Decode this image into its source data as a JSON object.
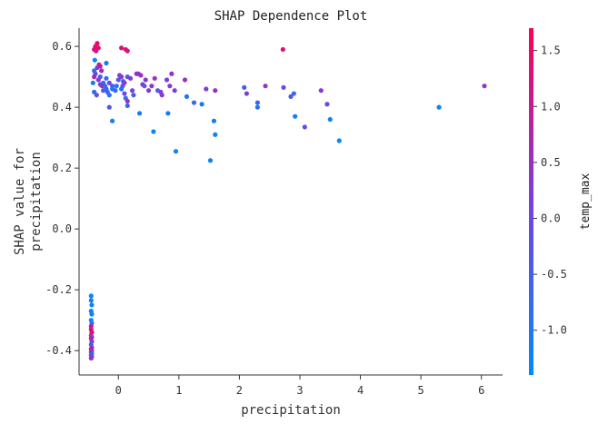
{
  "chart_data": {
    "type": "scatter",
    "title": "SHAP Dependence Plot",
    "xlabel": "precipitation",
    "ylabel_lines": [
      "SHAP value for",
      "precipitation"
    ],
    "xlim": [
      -0.65,
      6.35
    ],
    "ylim": [
      -0.48,
      0.66
    ],
    "xticks": [
      0,
      1,
      2,
      3,
      4,
      5,
      6
    ],
    "yticks": [
      -0.4,
      -0.2,
      0.0,
      0.2,
      0.4,
      0.6
    ],
    "ytick_labels": [
      "-0.4",
      "-0.2",
      "0.0",
      "0.2",
      "0.4",
      "0.6"
    ],
    "colorbar": {
      "label": "temp_max",
      "range": [
        -1.4,
        1.7
      ],
      "ticks": [
        -1.0,
        -0.5,
        0.0,
        0.5,
        1.0,
        1.5
      ],
      "tick_labels": [
        "-1.0",
        "-0.5",
        "0.0",
        "0.5",
        "1.0",
        "1.5"
      ],
      "colors": [
        "#008afb",
        "#7a3fe0",
        "#ff0052"
      ]
    },
    "points": [
      [
        -0.4,
        0.59,
        1.4
      ],
      [
        -0.38,
        0.6,
        1.3
      ],
      [
        -0.35,
        0.61,
        1.5
      ],
      [
        -0.37,
        0.585,
        1.2
      ],
      [
        -0.33,
        0.595,
        1.4
      ],
      [
        0.05,
        0.595,
        1.3
      ],
      [
        0.12,
        0.59,
        1.4
      ],
      [
        0.15,
        0.585,
        1.2
      ],
      [
        2.72,
        0.59,
        1.3
      ],
      [
        -0.4,
        0.52,
        -0.9
      ],
      [
        -0.38,
        0.51,
        -0.3
      ],
      [
        -0.35,
        0.53,
        0.2
      ],
      [
        -0.3,
        0.5,
        -0.5
      ],
      [
        -0.28,
        0.52,
        0.6
      ],
      [
        -0.25,
        0.48,
        -0.7
      ],
      [
        -0.22,
        0.47,
        -1.0
      ],
      [
        -0.2,
        0.46,
        -0.6
      ],
      [
        -0.18,
        0.45,
        -0.4
      ],
      [
        -0.15,
        0.44,
        -0.9
      ],
      [
        -0.42,
        0.48,
        -1.2
      ],
      [
        -0.4,
        0.45,
        -0.8
      ],
      [
        -0.36,
        0.44,
        -0.2
      ],
      [
        -0.33,
        0.49,
        0.3
      ],
      [
        -0.3,
        0.475,
        -0.1
      ],
      [
        -0.27,
        0.47,
        0.4
      ],
      [
        -0.25,
        0.455,
        -0.5
      ],
      [
        -0.2,
        0.495,
        -0.8
      ],
      [
        -0.15,
        0.48,
        0.1
      ],
      [
        -0.1,
        0.47,
        -0.3
      ],
      [
        -0.39,
        0.555,
        -1.3
      ],
      [
        -0.32,
        0.54,
        0.8
      ],
      [
        -0.3,
        0.535,
        0.9
      ],
      [
        -0.2,
        0.545,
        -1.1
      ],
      [
        -0.4,
        0.5,
        0.7
      ],
      [
        -0.1,
        0.46,
        -1.2
      ],
      [
        -0.05,
        0.455,
        -0.5
      ],
      [
        -0.03,
        0.47,
        -0.9
      ],
      [
        0.0,
        0.49,
        -0.2
      ],
      [
        0.02,
        0.505,
        0.2
      ],
      [
        0.05,
        0.46,
        -1.1
      ],
      [
        0.07,
        0.47,
        -0.4
      ],
      [
        0.1,
        0.445,
        0.0
      ],
      [
        0.12,
        0.43,
        -0.7
      ],
      [
        0.15,
        0.42,
        0.5
      ],
      [
        0.05,
        0.5,
        0.3
      ],
      [
        0.08,
        0.485,
        -0.6
      ],
      [
        0.1,
        0.48,
        0.4
      ],
      [
        0.15,
        0.5,
        -0.3
      ],
      [
        0.2,
        0.495,
        0.2
      ],
      [
        0.23,
        0.455,
        0.1
      ],
      [
        0.25,
        0.44,
        -0.5
      ],
      [
        0.3,
        0.51,
        0.6
      ],
      [
        0.33,
        0.51,
        0.4
      ],
      [
        0.37,
        0.505,
        0.5
      ],
      [
        0.4,
        0.475,
        0.1
      ],
      [
        0.43,
        0.47,
        -0.2
      ],
      [
        0.45,
        0.49,
        0.3
      ],
      [
        0.5,
        0.455,
        0.2
      ],
      [
        0.55,
        0.47,
        0.4
      ],
      [
        0.6,
        0.495,
        0.5
      ],
      [
        0.65,
        0.455,
        -0.4
      ],
      [
        0.7,
        0.45,
        0.1
      ],
      [
        0.72,
        0.44,
        0.3
      ],
      [
        0.8,
        0.49,
        0.2
      ],
      [
        0.85,
        0.47,
        0.4
      ],
      [
        0.88,
        0.51,
        0.5
      ],
      [
        0.93,
        0.455,
        0.2
      ],
      [
        1.1,
        0.49,
        0.5
      ],
      [
        1.45,
        0.46,
        0.3
      ],
      [
        1.6,
        0.455,
        0.6
      ],
      [
        -0.15,
        0.4,
        -0.3
      ],
      [
        -0.1,
        0.355,
        -1.2
      ],
      [
        0.15,
        0.405,
        -0.8
      ],
      [
        0.35,
        0.38,
        -1.1
      ],
      [
        0.58,
        0.32,
        -1.2
      ],
      [
        0.82,
        0.38,
        -1.2
      ],
      [
        0.95,
        0.255,
        -1.3
      ],
      [
        1.13,
        0.435,
        -1.0
      ],
      [
        1.25,
        0.415,
        -0.7
      ],
      [
        1.38,
        0.41,
        -1.1
      ],
      [
        1.52,
        0.225,
        -1.2
      ],
      [
        1.58,
        0.355,
        -1.1
      ],
      [
        1.6,
        0.31,
        -1.2
      ],
      [
        2.08,
        0.465,
        -0.5
      ],
      [
        2.12,
        0.445,
        0.2
      ],
      [
        2.3,
        0.415,
        -0.6
      ],
      [
        2.3,
        0.4,
        -1.1
      ],
      [
        2.43,
        0.47,
        0.4
      ],
      [
        2.73,
        0.465,
        -0.2
      ],
      [
        2.85,
        0.435,
        -0.4
      ],
      [
        2.9,
        0.445,
        -0.6
      ],
      [
        2.92,
        0.37,
        -1.2
      ],
      [
        3.08,
        0.335,
        0.0
      ],
      [
        3.35,
        0.455,
        0.3
      ],
      [
        3.45,
        0.41,
        -0.1
      ],
      [
        3.5,
        0.36,
        -1.2
      ],
      [
        3.65,
        0.29,
        -1.3
      ],
      [
        5.3,
        0.4,
        -1.2
      ],
      [
        6.05,
        0.47,
        0.4
      ],
      [
        -0.45,
        -0.22,
        -1.3
      ],
      [
        -0.45,
        -0.235,
        -1.2
      ],
      [
        -0.44,
        -0.25,
        -1.3
      ],
      [
        -0.45,
        -0.27,
        -1.1
      ],
      [
        -0.44,
        -0.28,
        -1.3
      ],
      [
        -0.45,
        -0.3,
        -1.2
      ],
      [
        -0.44,
        -0.31,
        -0.9
      ],
      [
        -0.45,
        -0.32,
        0.9
      ],
      [
        -0.45,
        -0.33,
        1.3
      ],
      [
        -0.44,
        -0.34,
        1.5
      ],
      [
        -0.45,
        -0.35,
        0.7
      ],
      [
        -0.44,
        -0.355,
        -0.3
      ],
      [
        -0.45,
        -0.36,
        1.1
      ],
      [
        -0.44,
        -0.37,
        0.3
      ],
      [
        -0.45,
        -0.38,
        -0.6
      ],
      [
        -0.44,
        -0.39,
        0.5
      ],
      [
        -0.45,
        -0.395,
        1.2
      ],
      [
        -0.44,
        -0.4,
        -0.2
      ],
      [
        -0.45,
        -0.405,
        0.8
      ],
      [
        -0.44,
        -0.41,
        -1.0
      ],
      [
        -0.45,
        -0.415,
        0.1
      ],
      [
        -0.44,
        -0.42,
        -0.5
      ],
      [
        -0.45,
        -0.425,
        0.4
      ]
    ]
  }
}
